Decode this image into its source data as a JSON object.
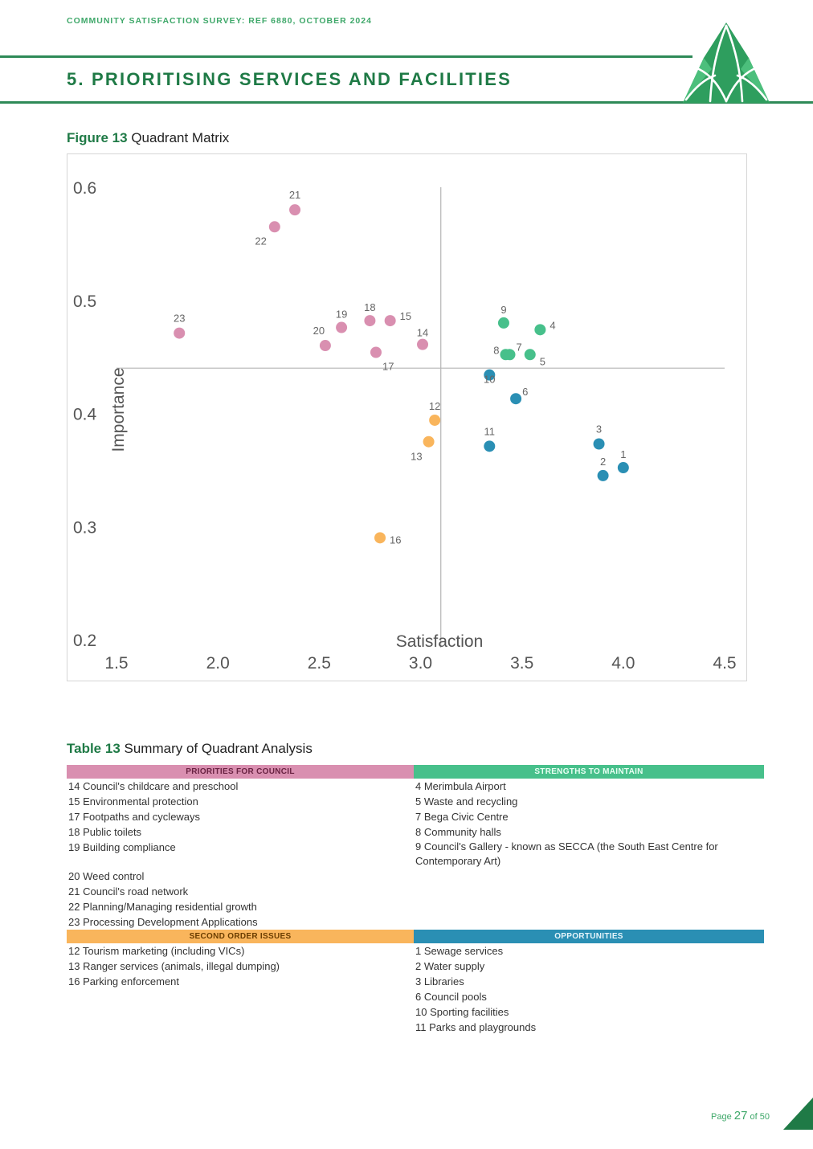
{
  "header": {
    "survey_ref": "COMMUNITY SATISFACTION SURVEY: REF 6880, OCTOBER 2024",
    "section_title": "5. PRIORITISING SERVICES AND FACILITIES"
  },
  "figure": {
    "label": "Figure 13",
    "title": "Quadrant Matrix"
  },
  "chart_data": {
    "type": "scatter",
    "title": "Quadrant Matrix",
    "xlabel": "Satisfaction",
    "ylabel": "Importance",
    "xlim": [
      1.5,
      4.5
    ],
    "ylim": [
      0.2,
      0.6
    ],
    "x_ticks": [
      "1.5",
      "2.0",
      "2.5",
      "3.0",
      "3.5",
      "4.0",
      "4.5"
    ],
    "y_ticks": [
      "0.6",
      "0.5",
      "0.4",
      "0.3",
      "0.2"
    ],
    "divider_x": 3.1,
    "divider_y": 0.44,
    "colors": {
      "priorities": "#d98fb0",
      "strengths": "#47c08b",
      "second": "#f9b55c",
      "opportunities": "#2a8fb4"
    },
    "points": [
      {
        "label": "1",
        "x": 4.0,
        "y": 0.352,
        "group": "opportunities"
      },
      {
        "label": "2",
        "x": 3.9,
        "y": 0.345,
        "group": "opportunities"
      },
      {
        "label": "3",
        "x": 3.88,
        "y": 0.373,
        "group": "opportunities"
      },
      {
        "label": "4",
        "x": 3.59,
        "y": 0.474,
        "group": "strengths"
      },
      {
        "label": "5",
        "x": 3.54,
        "y": 0.452,
        "group": "strengths"
      },
      {
        "label": "6",
        "x": 3.47,
        "y": 0.413,
        "group": "opportunities"
      },
      {
        "label": "7",
        "x": 3.44,
        "y": 0.452,
        "group": "strengths"
      },
      {
        "label": "8",
        "x": 3.42,
        "y": 0.452,
        "group": "strengths"
      },
      {
        "label": "9",
        "x": 3.41,
        "y": 0.48,
        "group": "strengths"
      },
      {
        "label": "10",
        "x": 3.34,
        "y": 0.434,
        "group": "opportunities"
      },
      {
        "label": "11",
        "x": 3.34,
        "y": 0.371,
        "group": "opportunities"
      },
      {
        "label": "12",
        "x": 3.07,
        "y": 0.394,
        "group": "second"
      },
      {
        "label": "13",
        "x": 3.04,
        "y": 0.375,
        "group": "second"
      },
      {
        "label": "14",
        "x": 3.01,
        "y": 0.461,
        "group": "priorities"
      },
      {
        "label": "15",
        "x": 2.85,
        "y": 0.482,
        "group": "priorities"
      },
      {
        "label": "16",
        "x": 2.8,
        "y": 0.29,
        "group": "second"
      },
      {
        "label": "17",
        "x": 2.78,
        "y": 0.454,
        "group": "priorities"
      },
      {
        "label": "18",
        "x": 2.75,
        "y": 0.482,
        "group": "priorities"
      },
      {
        "label": "19",
        "x": 2.61,
        "y": 0.476,
        "group": "priorities"
      },
      {
        "label": "20",
        "x": 2.53,
        "y": 0.46,
        "group": "priorities"
      },
      {
        "label": "21",
        "x": 2.38,
        "y": 0.58,
        "group": "priorities"
      },
      {
        "label": "22",
        "x": 2.28,
        "y": 0.565,
        "group": "priorities"
      },
      {
        "label": "23",
        "x": 1.81,
        "y": 0.471,
        "group": "priorities"
      }
    ]
  },
  "table": {
    "label": "Table 13",
    "title": "Summary of Quadrant Analysis",
    "priorities": {
      "header": "PRIORITIES FOR COUNCIL",
      "items": [
        "14 Council's childcare and preschool",
        "15 Environmental protection",
        "17 Footpaths and cycleways",
        "18 Public toilets",
        "19 Building compliance",
        "20 Weed control",
        "21 Council's road network",
        "22 Planning/Managing residential growth",
        "23 Processing Development Applications"
      ]
    },
    "strengths": {
      "header": "STRENGTHS TO MAINTAIN",
      "items": [
        "4 Merimbula Airport",
        "5 Waste and recycling",
        "7 Bega Civic Centre",
        "8 Community halls",
        "9 Council's Gallery - known as SECCA (the South East Centre for Contemporary Art)"
      ]
    },
    "second": {
      "header": "SECOND ORDER ISSUES",
      "items": [
        "12 Tourism marketing (including VICs)",
        "13 Ranger services (animals, illegal dumping)",
        "16 Parking enforcement"
      ]
    },
    "opportunities": {
      "header": "OPPORTUNITIES",
      "items": [
        "1 Sewage services",
        "2 Water supply",
        "3 Libraries",
        "6 Council pools",
        "10 Sporting facilities",
        "11 Parks and playgrounds"
      ]
    }
  },
  "footer": {
    "page_prefix": "Page",
    "page_number": "27",
    "page_suffix": "of 50"
  }
}
